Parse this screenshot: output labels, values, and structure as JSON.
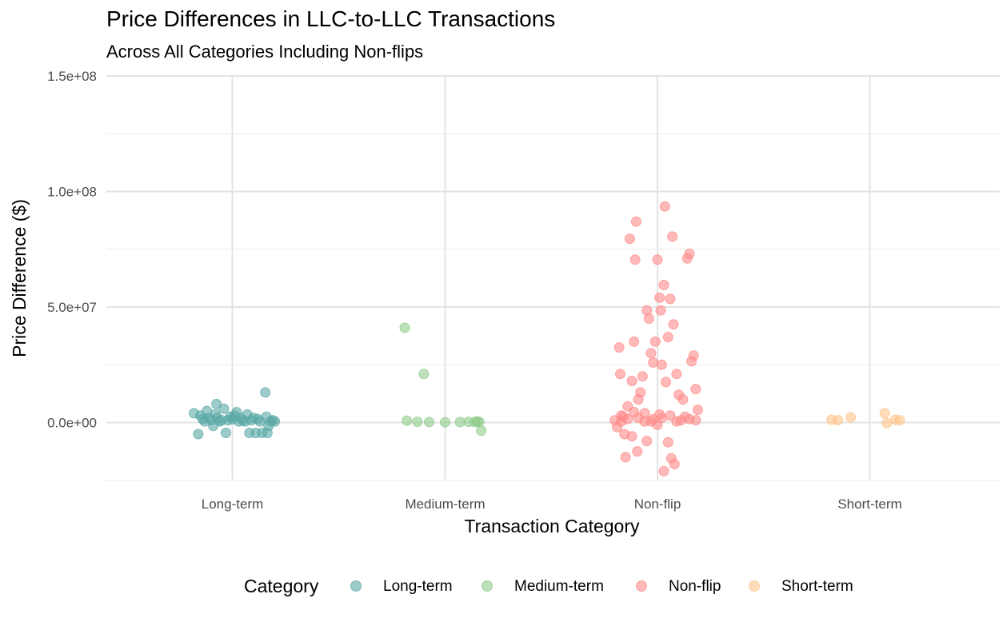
{
  "chart_data": {
    "type": "scatter",
    "title": "Price Differences in LLC-to-LLC Transactions",
    "subtitle": "Across All Categories Including Non-flips",
    "xlabel": "Transaction Category",
    "ylabel": "Price Difference ($)",
    "categories": [
      "Long-term",
      "Medium-term",
      "Non-flip",
      "Short-term"
    ],
    "ylim": [
      -25000000,
      150000000
    ],
    "yticks": [
      0,
      50000000,
      100000000,
      150000000
    ],
    "ytick_labels": [
      "0.0e+00",
      "5.0e+07",
      "1.0e+08",
      "1.5e+08"
    ],
    "grid": true,
    "jitter": true,
    "legend": {
      "title": "Category",
      "position": "bottom",
      "entries": [
        "Long-term",
        "Medium-term",
        "Non-flip",
        "Short-term"
      ]
    },
    "colors": {
      "Long-term": "#5aa9a6",
      "Medium-term": "#8fcb89",
      "Non-flip": "#ff8b8b",
      "Short-term": "#ffc48c"
    },
    "series": [
      {
        "name": "Long-term",
        "points": [
          [
            -0.18,
            4000000
          ],
          [
            -0.16,
            -5000000
          ],
          [
            -0.15,
            3000000
          ],
          [
            -0.14,
            1500000
          ],
          [
            -0.13,
            500000
          ],
          [
            -0.12,
            5000000
          ],
          [
            -0.11,
            2000000
          ],
          [
            -0.1,
            1000000
          ],
          [
            -0.09,
            -1500000
          ],
          [
            -0.08,
            3500000
          ],
          [
            -0.075,
            8000000
          ],
          [
            -0.07,
            2000000
          ],
          [
            -0.06,
            500000
          ],
          [
            -0.05,
            1000000
          ],
          [
            -0.04,
            6000000
          ],
          [
            -0.03,
            -4500000
          ],
          [
            -0.02,
            1000000
          ],
          [
            -0.01,
            2500000
          ],
          [
            0.0,
            1500000
          ],
          [
            0.01,
            3000000
          ],
          [
            0.02,
            4500000
          ],
          [
            0.03,
            500000
          ],
          [
            0.04,
            2000000
          ],
          [
            0.05,
            1000000
          ],
          [
            0.06,
            500000
          ],
          [
            0.07,
            3500000
          ],
          [
            0.08,
            -4500000
          ],
          [
            0.09,
            1000000
          ],
          [
            0.1,
            2000000
          ],
          [
            0.11,
            -4500000
          ],
          [
            0.12,
            1500000
          ],
          [
            0.13,
            500000
          ],
          [
            0.14,
            -4500000
          ],
          [
            0.155,
            13000000
          ],
          [
            0.16,
            2500000
          ],
          [
            0.165,
            -4500000
          ],
          [
            0.17,
            -1500000
          ],
          [
            0.18,
            500000
          ],
          [
            0.19,
            1000000
          ],
          [
            0.2,
            500000
          ]
        ]
      },
      {
        "name": "Medium-term",
        "points": [
          [
            -0.19,
            41000000
          ],
          [
            -0.18,
            800000
          ],
          [
            -0.13,
            300000
          ],
          [
            -0.1,
            21000000
          ],
          [
            -0.075,
            200000
          ],
          [
            0.0,
            100000
          ],
          [
            0.07,
            200000
          ],
          [
            0.11,
            300000
          ],
          [
            0.14,
            200000
          ],
          [
            0.15,
            500000
          ],
          [
            0.16,
            300000
          ],
          [
            0.17,
            -3500000
          ]
        ]
      },
      {
        "name": "Non-flip",
        "points": [
          [
            -0.2,
            1000000
          ],
          [
            -0.19,
            -2000000
          ],
          [
            -0.18,
            32500000
          ],
          [
            -0.175,
            21000000
          ],
          [
            -0.17,
            500000
          ],
          [
            -0.16,
            2500000
          ],
          [
            -0.155,
            -5000000
          ],
          [
            -0.15,
            -15000000
          ],
          [
            -0.14,
            7000000
          ],
          [
            -0.13,
            79500000
          ],
          [
            -0.12,
            18000000
          ],
          [
            -0.11,
            35000000
          ],
          [
            -0.105,
            70500000
          ],
          [
            -0.1,
            87000000
          ],
          [
            -0.095,
            -12500000
          ],
          [
            -0.09,
            10000000
          ],
          [
            -0.08,
            13000000
          ],
          [
            -0.07,
            20000000
          ],
          [
            -0.06,
            4000000
          ],
          [
            -0.05,
            48500000
          ],
          [
            -0.04,
            45000000
          ],
          [
            -0.03,
            30000000
          ],
          [
            -0.02,
            26000000
          ],
          [
            -0.01,
            35000000
          ],
          [
            0.0,
            70500000
          ],
          [
            0.01,
            54000000
          ],
          [
            0.015,
            48500000
          ],
          [
            0.02,
            25000000
          ],
          [
            0.03,
            59500000
          ],
          [
            0.035,
            93500000
          ],
          [
            0.04,
            17500000
          ],
          [
            0.05,
            37000000
          ],
          [
            0.06,
            53500000
          ],
          [
            0.07,
            80500000
          ],
          [
            0.075,
            42500000
          ],
          [
            0.08,
            -18000000
          ],
          [
            0.09,
            21000000
          ],
          [
            0.1,
            12000000
          ],
          [
            0.12,
            10000000
          ],
          [
            0.14,
            71000000
          ],
          [
            0.15,
            73000000
          ],
          [
            0.16,
            26500000
          ],
          [
            0.17,
            29000000
          ],
          [
            0.18,
            14500000
          ],
          [
            0.19,
            5500000
          ],
          [
            -0.05,
            -8000000
          ],
          [
            0.05,
            -8500000
          ],
          [
            -0.12,
            -6000000
          ],
          [
            0.0,
            -1000000
          ],
          [
            0.03,
            -21000000
          ],
          [
            0.065,
            -15500000
          ],
          [
            -0.09,
            2000000
          ],
          [
            0.11,
            1000000
          ],
          [
            -0.14,
            1500000
          ],
          [
            0.13,
            2500000
          ],
          [
            -0.06,
            500000
          ],
          [
            0.06,
            3000000
          ],
          [
            -0.02,
            1500000
          ],
          [
            0.02,
            2000000
          ],
          [
            0.09,
            500000
          ],
          [
            -0.17,
            3000000
          ],
          [
            0.18,
            1000000
          ],
          [
            -0.11,
            4500000
          ],
          [
            0.15,
            1500000
          ],
          [
            -0.03,
            500000
          ],
          [
            0.01,
            3500000
          ]
        ]
      },
      {
        "name": "Short-term",
        "points": [
          [
            -0.18,
            1200000
          ],
          [
            -0.15,
            1000000
          ],
          [
            -0.09,
            2200000
          ],
          [
            0.07,
            4000000
          ],
          [
            0.08,
            -200000
          ],
          [
            0.12,
            1200000
          ],
          [
            0.14,
            1000000
          ]
        ]
      }
    ]
  }
}
